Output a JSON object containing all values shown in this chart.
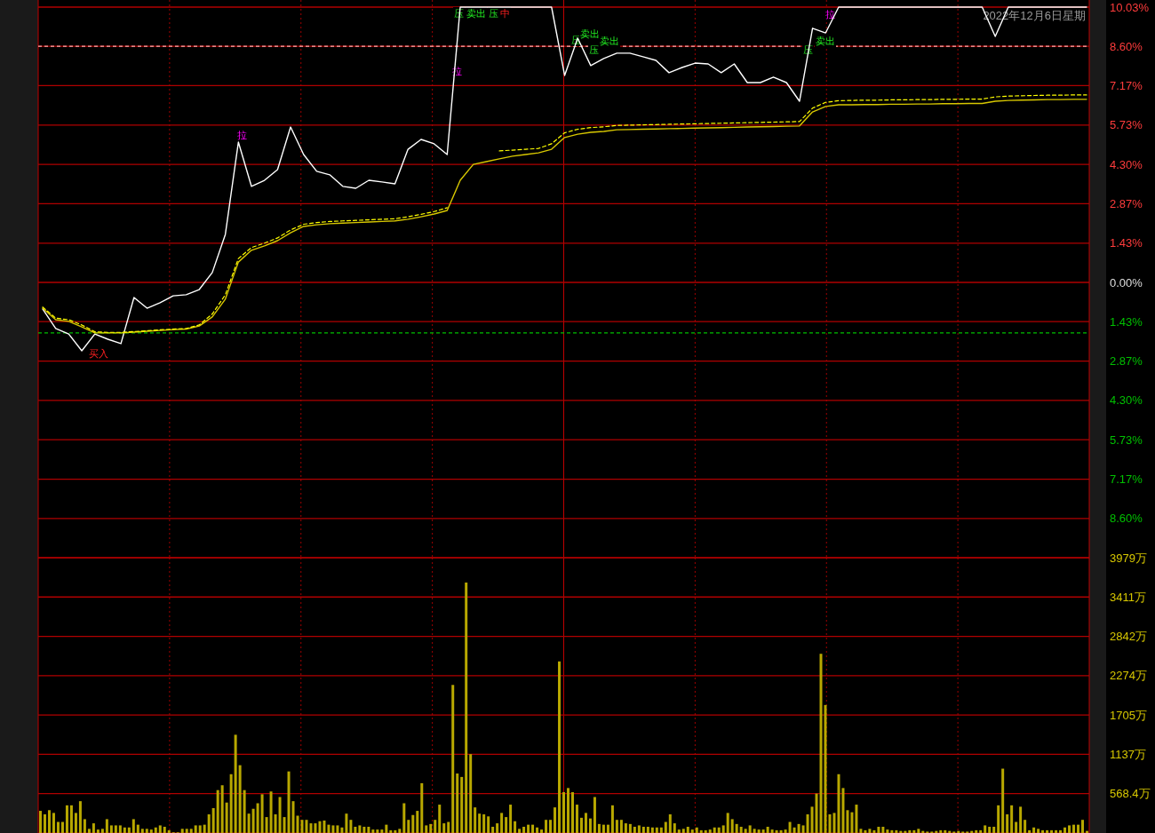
{
  "chart_data": [
    {
      "type": "line",
      "grid": true,
      "categories": [
        null,
        null,
        null,
        null,
        null,
        null,
        null,
        null,
        null,
        null,
        null,
        null,
        null,
        null,
        null,
        null,
        null,
        null,
        null,
        null,
        null,
        null,
        null,
        null,
        null,
        null,
        null,
        null,
        null,
        null,
        null,
        null,
        null,
        null,
        null,
        null,
        null,
        null,
        null,
        null,
        null,
        null,
        null,
        null,
        null,
        null,
        null,
        null,
        null,
        null,
        null,
        null,
        null,
        null,
        null,
        null,
        null,
        null,
        null,
        null,
        null,
        null,
        null,
        null,
        null,
        null,
        null,
        null,
        null,
        null,
        null,
        null,
        null,
        null,
        null,
        null,
        null,
        null,
        null,
        null,
        null
      ],
      "series": [
        {
          "color": "#ffffff",
          "line_style": "solid",
          "values": [
            -0.97,
            -1.68,
            -1.88,
            -2.49,
            -1.88,
            -2.07,
            -2.23,
            -0.55,
            -0.94,
            -0.74,
            -0.49,
            -0.45,
            -0.26,
            0.36,
            1.75,
            5.11,
            3.5,
            3.72,
            4.11,
            5.66,
            4.66,
            4.05,
            3.92,
            3.5,
            3.43,
            3.72,
            3.66,
            3.59,
            4.85,
            5.21,
            5.05,
            4.66,
            10.03,
            10.03,
            10.03,
            10.03,
            10.03,
            10.03,
            10.03,
            10.03,
            7.54,
            8.9,
            7.9,
            8.16,
            8.35,
            8.35,
            8.22,
            8.09,
            7.64,
            7.83,
            7.99,
            7.96,
            7.64,
            7.96,
            7.28,
            7.28,
            7.48,
            7.28,
            6.6,
            9.26,
            9.09,
            10.03,
            10.03,
            10.03,
            10.03,
            10.03,
            10.03,
            10.03,
            10.03,
            10.03,
            10.03,
            10.03,
            10.03,
            8.96,
            10.03,
            10.03,
            10.03,
            10.03,
            10.03,
            10.03,
            10.03
          ]
        },
        {
          "color": "#d8c800",
          "line_style": "solid",
          "values": [
            -0.94,
            -1.36,
            -1.42,
            -1.62,
            -1.84,
            -1.84,
            -1.84,
            -1.81,
            -1.78,
            -1.75,
            -1.72,
            -1.7,
            -1.59,
            -1.26,
            -0.61,
            0.74,
            1.17,
            1.33,
            1.52,
            1.81,
            2.04,
            2.1,
            2.14,
            2.16,
            2.18,
            2.2,
            2.22,
            2.24,
            2.3,
            2.39,
            2.49,
            2.62,
            3.72,
            4.3,
            4.4,
            4.5,
            4.6,
            4.66,
            4.72,
            4.85,
            5.28,
            5.4,
            5.47,
            5.5,
            5.56,
            5.57,
            5.58,
            5.59,
            5.6,
            5.61,
            5.62,
            5.63,
            5.64,
            5.65,
            5.66,
            5.67,
            5.68,
            5.69,
            5.7,
            6.21,
            6.41,
            6.47,
            6.47,
            6.48,
            6.48,
            6.49,
            6.49,
            6.5,
            6.5,
            6.51,
            6.51,
            6.52,
            6.52,
            6.6,
            6.63,
            6.64,
            6.65,
            6.66,
            6.66,
            6.67,
            6.67
          ]
        },
        {
          "color": "#ffff00",
          "line_style": "dashed",
          "values": [
            -0.9,
            -1.3,
            -1.36,
            -1.55,
            -1.8,
            -1.82,
            -1.82,
            -1.79,
            -1.76,
            -1.73,
            -1.7,
            -1.68,
            -1.55,
            -1.15,
            -0.45,
            0.87,
            1.27,
            1.43,
            1.62,
            1.91,
            2.12,
            2.18,
            2.22,
            2.24,
            2.26,
            2.28,
            2.3,
            2.32,
            2.39,
            2.48,
            2.58,
            2.72,
            null,
            null,
            null,
            4.79,
            4.82,
            4.85,
            4.88,
            5.05,
            5.45,
            5.58,
            5.64,
            5.67,
            5.72,
            5.73,
            5.74,
            5.75,
            5.76,
            5.77,
            5.78,
            5.79,
            5.8,
            5.81,
            5.82,
            5.83,
            5.84,
            5.85,
            5.86,
            6.35,
            6.56,
            6.62,
            6.63,
            6.64,
            6.64,
            6.65,
            6.65,
            6.66,
            6.66,
            6.67,
            6.67,
            6.68,
            6.68,
            6.76,
            6.79,
            6.8,
            6.81,
            6.82,
            6.82,
            6.83,
            6.83
          ]
        }
      ],
      "ylim": [
        -10.03,
        10.03
      ],
      "yticks": [
        {
          "value": 10.03,
          "label": "10.03%"
        },
        {
          "value": 8.6,
          "label": "8.60%"
        },
        {
          "value": 7.17,
          "label": "7.17%"
        },
        {
          "value": 5.73,
          "label": "5.73%"
        },
        {
          "value": 4.3,
          "label": "4.30%"
        },
        {
          "value": 2.87,
          "label": "2.87%"
        },
        {
          "value": 1.43,
          "label": "1.43%"
        },
        {
          "value": 0,
          "label": "0.00%"
        },
        {
          "value": -1.43,
          "label": "1.43%"
        },
        {
          "value": -2.87,
          "label": "2.87%"
        },
        {
          "value": -4.3,
          "label": "4.30%"
        },
        {
          "value": -5.73,
          "label": "5.73%"
        },
        {
          "value": -7.17,
          "label": "7.17%"
        },
        {
          "value": -8.6,
          "label": "8.60%"
        }
      ],
      "ref_lines": [
        {
          "axis": "y",
          "value": 8.6,
          "color": "#ffb0b0",
          "line_style": "dashed"
        },
        {
          "axis": "y",
          "value": -1.84,
          "color": "#00c000",
          "line_style": "dashed"
        }
      ],
      "annotations": [
        "2022年12月6日星期",
        "拉",
        "拉",
        "拉",
        "压",
        "卖出",
        "压",
        "中",
        "压",
        "卖出",
        "压",
        "卖出",
        "压",
        "卖出",
        "买入"
      ]
    },
    {
      "type": "bar",
      "grid": true,
      "color": "#b8a800",
      "categories": [
        null,
        null,
        null,
        null,
        null,
        null,
        null,
        null,
        null,
        null,
        null,
        null,
        null,
        null,
        null,
        null,
        null,
        null,
        null,
        null,
        null,
        null,
        null,
        null,
        null,
        null,
        null,
        null,
        null,
        null,
        null,
        null,
        null,
        null,
        null,
        null,
        null,
        null,
        null,
        null,
        null,
        null,
        null,
        null,
        null,
        null,
        null,
        null,
        null,
        null,
        null,
        null,
        null,
        null,
        null,
        null,
        null,
        null,
        null,
        null,
        null,
        null,
        null,
        null,
        null,
        null,
        null,
        null,
        null,
        null,
        null,
        null,
        null,
        null,
        null,
        null,
        null,
        null,
        null,
        null,
        null,
        null,
        null,
        null,
        null,
        null,
        null,
        null,
        null,
        null,
        null,
        null,
        null,
        null,
        null,
        null,
        null,
        null,
        null,
        null,
        null,
        null,
        null,
        null,
        null,
        null,
        null,
        null,
        null,
        null,
        null,
        null,
        null,
        null,
        null,
        null,
        null,
        null,
        null,
        null,
        null,
        null,
        null,
        null,
        null,
        null,
        null,
        null,
        null,
        null,
        null,
        null,
        null,
        null,
        null,
        null,
        null,
        null,
        null,
        null,
        null,
        null,
        null,
        null,
        null,
        null,
        null,
        null,
        null,
        null,
        null,
        null,
        null,
        null,
        null,
        null,
        null,
        null,
        null,
        null,
        null,
        null,
        null,
        null,
        null,
        null,
        null,
        null,
        null,
        null,
        null,
        null,
        null,
        null,
        null,
        null,
        null,
        null,
        null,
        null,
        null,
        null,
        null,
        null,
        null,
        null,
        null,
        null,
        null,
        null,
        null,
        null,
        null,
        null,
        null,
        null,
        null,
        null,
        null,
        null,
        null,
        null,
        null,
        null,
        null,
        null,
        null,
        null,
        null,
        null,
        null,
        null,
        null,
        null,
        null,
        null,
        null,
        null,
        null,
        null,
        null,
        null,
        null,
        null,
        null,
        null,
        null,
        null,
        null,
        null,
        null,
        null,
        null,
        null,
        null,
        null,
        null
      ],
      "values": [
        320,
        270,
        330,
        290,
        160,
        160,
        400,
        400,
        290,
        460,
        200,
        60,
        140,
        50,
        60,
        200,
        110,
        110,
        110,
        80,
        80,
        200,
        120,
        60,
        60,
        50,
        80,
        110,
        90,
        40,
        10,
        10,
        60,
        60,
        60,
        110,
        110,
        120,
        270,
        360,
        620,
        690,
        440,
        850,
        1420,
        980,
        620,
        280,
        350,
        430,
        560,
        230,
        600,
        270,
        520,
        230,
        890,
        460,
        250,
        190,
        190,
        140,
        140,
        170,
        180,
        120,
        110,
        110,
        80,
        280,
        190,
        90,
        110,
        90,
        90,
        50,
        50,
        50,
        120,
        40,
        40,
        60,
        430,
        190,
        260,
        320,
        720,
        110,
        130,
        190,
        410,
        140,
        160,
        2140,
        860,
        810,
        3620,
        1140,
        370,
        280,
        270,
        240,
        90,
        140,
        290,
        230,
        410,
        170,
        60,
        90,
        120,
        120,
        80,
        50,
        190,
        190,
        370,
        2480,
        590,
        650,
        590,
        410,
        220,
        290,
        210,
        520,
        130,
        120,
        120,
        400,
        190,
        190,
        140,
        130,
        90,
        110,
        90,
        90,
        80,
        80,
        80,
        160,
        270,
        140,
        50,
        60,
        90,
        50,
        80,
        40,
        40,
        50,
        80,
        80,
        110,
        290,
        200,
        130,
        90,
        60,
        110,
        60,
        50,
        50,
        90,
        50,
        40,
        40,
        50,
        160,
        80,
        130,
        110,
        270,
        380,
        570,
        2590,
        1850,
        270,
        290,
        850,
        650,
        330,
        300,
        410,
        60,
        40,
        60,
        40,
        90,
        90,
        50,
        40,
        40,
        30,
        30,
        40,
        40,
        60,
        30,
        20,
        20,
        30,
        40,
        40,
        30,
        20,
        30,
        20,
        20,
        30,
        40,
        40,
        110,
        90,
        90,
        400,
        930,
        270,
        400,
        160,
        380,
        190,
        40,
        80,
        60,
        40,
        40,
        40,
        40,
        40,
        80,
        110,
        120,
        120,
        190,
        30
      ],
      "ylim": [
        0,
        3979
      ],
      "yticks": [
        {
          "value": 568.4,
          "label": "568.4万"
        },
        {
          "value": 1137,
          "label": "1137万"
        },
        {
          "value": 1705,
          "label": "1705万"
        },
        {
          "value": 2274,
          "label": "2274万"
        },
        {
          "value": 2842,
          "label": "2842万"
        },
        {
          "value": 3411,
          "label": "3411万"
        },
        {
          "value": 3979,
          "label": "3979万"
        }
      ]
    }
  ]
}
